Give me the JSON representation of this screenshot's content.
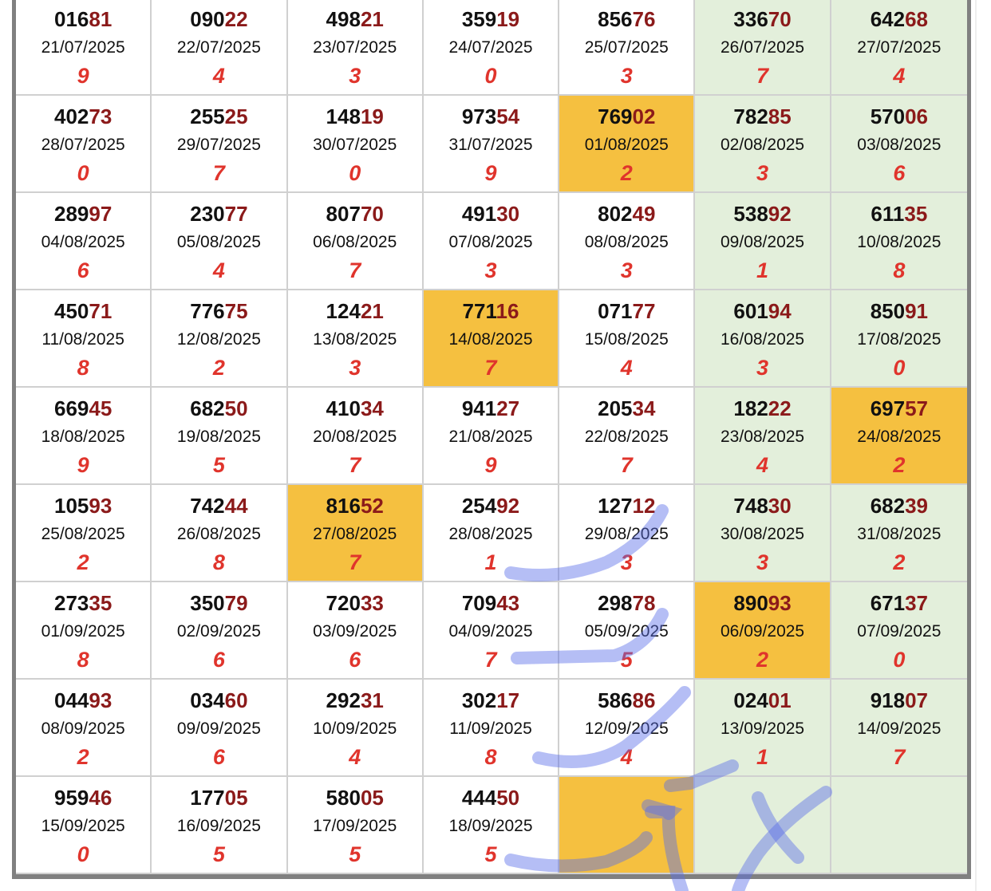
{
  "colors": {
    "highlight": "#f5c040",
    "weekend": "#e3efdb",
    "number_tail": "#8b1a1a",
    "digit": "#e0342c",
    "annotation": "#5a6ee8"
  },
  "rows": [
    [
      {
        "number": "01681",
        "date": "21/07/2025",
        "digit": "9"
      },
      {
        "number": "09022",
        "date": "22/07/2025",
        "digit": "4"
      },
      {
        "number": "49821",
        "date": "23/07/2025",
        "digit": "3"
      },
      {
        "number": "35919",
        "date": "24/07/2025",
        "digit": "0"
      },
      {
        "number": "85676",
        "date": "25/07/2025",
        "digit": "3"
      },
      {
        "number": "33670",
        "date": "26/07/2025",
        "digit": "7"
      },
      {
        "number": "64268",
        "date": "27/07/2025",
        "digit": "4"
      }
    ],
    [
      {
        "number": "40273",
        "date": "28/07/2025",
        "digit": "0"
      },
      {
        "number": "25525",
        "date": "29/07/2025",
        "digit": "7"
      },
      {
        "number": "14819",
        "date": "30/07/2025",
        "digit": "0"
      },
      {
        "number": "97354",
        "date": "31/07/2025",
        "digit": "9"
      },
      {
        "number": "76902",
        "date": "01/08/2025",
        "digit": "2",
        "highlight": true
      },
      {
        "number": "78285",
        "date": "02/08/2025",
        "digit": "3"
      },
      {
        "number": "57006",
        "date": "03/08/2025",
        "digit": "6"
      }
    ],
    [
      {
        "number": "28997",
        "date": "04/08/2025",
        "digit": "6"
      },
      {
        "number": "23077",
        "date": "05/08/2025",
        "digit": "4"
      },
      {
        "number": "80770",
        "date": "06/08/2025",
        "digit": "7"
      },
      {
        "number": "49130",
        "date": "07/08/2025",
        "digit": "3"
      },
      {
        "number": "80249",
        "date": "08/08/2025",
        "digit": "3"
      },
      {
        "number": "53892",
        "date": "09/08/2025",
        "digit": "1"
      },
      {
        "number": "61135",
        "date": "10/08/2025",
        "digit": "8"
      }
    ],
    [
      {
        "number": "45071",
        "date": "11/08/2025",
        "digit": "8"
      },
      {
        "number": "77675",
        "date": "12/08/2025",
        "digit": "2"
      },
      {
        "number": "12421",
        "date": "13/08/2025",
        "digit": "3"
      },
      {
        "number": "77116",
        "date": "14/08/2025",
        "digit": "7",
        "highlight": true
      },
      {
        "number": "07177",
        "date": "15/08/2025",
        "digit": "4"
      },
      {
        "number": "60194",
        "date": "16/08/2025",
        "digit": "3"
      },
      {
        "number": "85091",
        "date": "17/08/2025",
        "digit": "0"
      }
    ],
    [
      {
        "number": "66945",
        "date": "18/08/2025",
        "digit": "9"
      },
      {
        "number": "68250",
        "date": "19/08/2025",
        "digit": "5"
      },
      {
        "number": "41034",
        "date": "20/08/2025",
        "digit": "7"
      },
      {
        "number": "94127",
        "date": "21/08/2025",
        "digit": "9"
      },
      {
        "number": "20534",
        "date": "22/08/2025",
        "digit": "7"
      },
      {
        "number": "18222",
        "date": "23/08/2025",
        "digit": "4"
      },
      {
        "number": "69757",
        "date": "24/08/2025",
        "digit": "2",
        "highlight": true
      }
    ],
    [
      {
        "number": "10593",
        "date": "25/08/2025",
        "digit": "2"
      },
      {
        "number": "74244",
        "date": "26/08/2025",
        "digit": "8"
      },
      {
        "number": "81652",
        "date": "27/08/2025",
        "digit": "7",
        "highlight": true
      },
      {
        "number": "25492",
        "date": "28/08/2025",
        "digit": "1"
      },
      {
        "number": "12712",
        "date": "29/08/2025",
        "digit": "3"
      },
      {
        "number": "74830",
        "date": "30/08/2025",
        "digit": "3"
      },
      {
        "number": "68239",
        "date": "31/08/2025",
        "digit": "2"
      }
    ],
    [
      {
        "number": "27335",
        "date": "01/09/2025",
        "digit": "8"
      },
      {
        "number": "35079",
        "date": "02/09/2025",
        "digit": "6"
      },
      {
        "number": "72033",
        "date": "03/09/2025",
        "digit": "6"
      },
      {
        "number": "70943",
        "date": "04/09/2025",
        "digit": "7"
      },
      {
        "number": "29878",
        "date": "05/09/2025",
        "digit": "5"
      },
      {
        "number": "89093",
        "date": "06/09/2025",
        "digit": "2",
        "highlight": true
      },
      {
        "number": "67137",
        "date": "07/09/2025",
        "digit": "0"
      }
    ],
    [
      {
        "number": "04493",
        "date": "08/09/2025",
        "digit": "2"
      },
      {
        "number": "03460",
        "date": "09/09/2025",
        "digit": "6"
      },
      {
        "number": "29231",
        "date": "10/09/2025",
        "digit": "4"
      },
      {
        "number": "30217",
        "date": "11/09/2025",
        "digit": "8"
      },
      {
        "number": "58686",
        "date": "12/09/2025",
        "digit": "4"
      },
      {
        "number": "02401",
        "date": "13/09/2025",
        "digit": "1"
      },
      {
        "number": "91807",
        "date": "14/09/2025",
        "digit": "7"
      }
    ],
    [
      {
        "number": "95946",
        "date": "15/09/2025",
        "digit": "0"
      },
      {
        "number": "17705",
        "date": "16/09/2025",
        "digit": "5"
      },
      {
        "number": "58005",
        "date": "17/09/2025",
        "digit": "5"
      },
      {
        "number": "44450",
        "date": "18/09/2025",
        "digit": "5"
      },
      {
        "number": "",
        "date": "",
        "digit": "",
        "highlight": true
      },
      {
        "number": "",
        "date": "",
        "digit": ""
      },
      {
        "number": "",
        "date": "",
        "digit": ""
      }
    ]
  ]
}
